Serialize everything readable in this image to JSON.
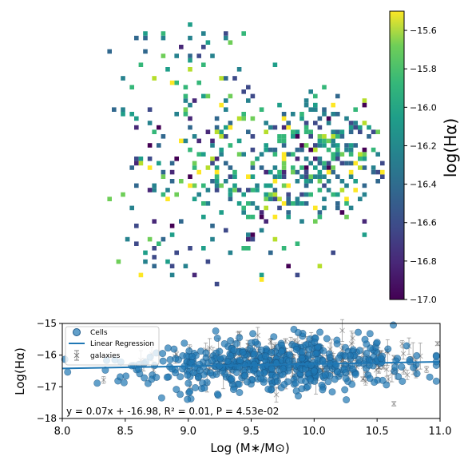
{
  "chart_data": [
    {
      "type": "heatmap",
      "colorbar": {
        "label": "log(Hα)",
        "range": [
          -17.0,
          -15.5
        ],
        "ticks": [
          "−17.0",
          "−16.8",
          "−16.6",
          "−16.4",
          "−16.2",
          "−16.0",
          "−15.8",
          "−15.6"
        ],
        "colormap": "viridis"
      },
      "seed": 11
    },
    {
      "type": "scatter",
      "xlabel": "Log (M∗/M⊙)",
      "ylabel": "Log(Hα)",
      "xlim": [
        8.0,
        11.0
      ],
      "ylim": [
        -18,
        -15
      ],
      "xticks": [
        "8.0",
        "8.5",
        "9.0",
        "9.5",
        "10.0",
        "10.5",
        "11.0"
      ],
      "yticks": [
        "−18",
        "−17",
        "−16",
        "−15"
      ],
      "legend": {
        "placement": "upper-left",
        "entries": [
          "Cells",
          "Linear Regression",
          "galaxies"
        ]
      },
      "regression": {
        "slope": 0.07,
        "intercept": -16.98
      },
      "annotation": "y = 0.07x + -16.98,  R² = 0.01,  P = 4.53e-02",
      "series": [
        {
          "name": "Cells",
          "color": "#1f77b4",
          "seed": 5
        },
        {
          "name": "galaxies",
          "color": "#7f7f7f",
          "seed": 17
        }
      ]
    }
  ]
}
